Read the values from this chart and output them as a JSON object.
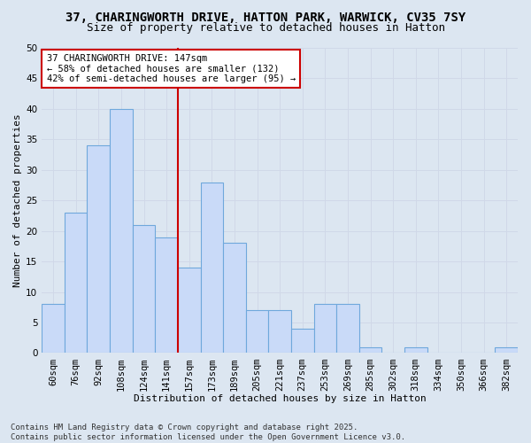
{
  "title": "37, CHARINGWORTH DRIVE, HATTON PARK, WARWICK, CV35 7SY",
  "subtitle": "Size of property relative to detached houses in Hatton",
  "xlabel": "Distribution of detached houses by size in Hatton",
  "ylabel": "Number of detached properties",
  "categories": [
    "60sqm",
    "76sqm",
    "92sqm",
    "108sqm",
    "124sqm",
    "141sqm",
    "157sqm",
    "173sqm",
    "189sqm",
    "205sqm",
    "221sqm",
    "237sqm",
    "253sqm",
    "269sqm",
    "285sqm",
    "302sqm",
    "318sqm",
    "334sqm",
    "350sqm",
    "366sqm",
    "382sqm"
  ],
  "values": [
    8,
    23,
    34,
    40,
    21,
    19,
    14,
    28,
    18,
    7,
    7,
    4,
    8,
    8,
    1,
    0,
    1,
    0,
    0,
    0,
    1
  ],
  "bar_color": "#c9daf8",
  "bar_edge_color": "#6fa8dc",
  "vline_x": 5.5,
  "vline_color": "#cc0000",
  "annotation_line1": "37 CHARINGWORTH DRIVE: 147sqm",
  "annotation_line2": "← 58% of detached houses are smaller (132)",
  "annotation_line3": "42% of semi-detached houses are larger (95) →",
  "annotation_box_color": "#ffffff",
  "annotation_box_edge": "#cc0000",
  "ylim": [
    0,
    50
  ],
  "yticks": [
    0,
    5,
    10,
    15,
    20,
    25,
    30,
    35,
    40,
    45,
    50
  ],
  "grid_color": "#d0d8e8",
  "bg_color": "#dce6f1",
  "footer": "Contains HM Land Registry data © Crown copyright and database right 2025.\nContains public sector information licensed under the Open Government Licence v3.0.",
  "title_fontsize": 10,
  "subtitle_fontsize": 9,
  "axis_label_fontsize": 8,
  "tick_fontsize": 7.5,
  "annotation_fontsize": 7.5,
  "footer_fontsize": 6.5
}
